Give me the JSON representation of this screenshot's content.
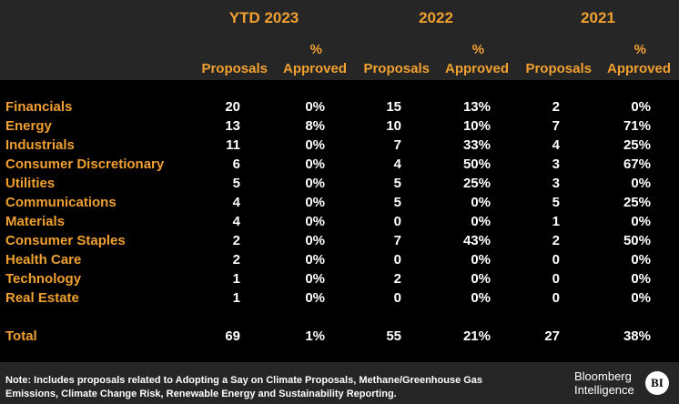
{
  "years": [
    "YTD 2023",
    "2022",
    "2021"
  ],
  "subheaders": {
    "proposals": "Proposals",
    "pct": "%",
    "approved": "Approved"
  },
  "rows": [
    {
      "sector": "Financials",
      "values": [
        "20",
        "0%",
        "15",
        "13%",
        "2",
        "0%"
      ]
    },
    {
      "sector": "Energy",
      "values": [
        "13",
        "8%",
        "10",
        "10%",
        "7",
        "71%"
      ]
    },
    {
      "sector": "Industrials",
      "values": [
        "11",
        "0%",
        "7",
        "33%",
        "4",
        "25%"
      ]
    },
    {
      "sector": "Consumer Discretionary",
      "values": [
        "6",
        "0%",
        "4",
        "50%",
        "3",
        "67%"
      ]
    },
    {
      "sector": "Utilities",
      "values": [
        "5",
        "0%",
        "5",
        "25%",
        "3",
        "0%"
      ]
    },
    {
      "sector": "Communications",
      "values": [
        "4",
        "0%",
        "5",
        "0%",
        "5",
        "25%"
      ]
    },
    {
      "sector": "Materials",
      "values": [
        "4",
        "0%",
        "0",
        "0%",
        "1",
        "0%"
      ]
    },
    {
      "sector": "Consumer Staples",
      "values": [
        "2",
        "0%",
        "7",
        "43%",
        "2",
        "50%"
      ]
    },
    {
      "sector": "Health Care",
      "values": [
        "2",
        "0%",
        "0",
        "0%",
        "0",
        "0%"
      ]
    },
    {
      "sector": "Technology",
      "values": [
        "1",
        "0%",
        "2",
        "0%",
        "0",
        "0%"
      ]
    },
    {
      "sector": "Real Estate",
      "values": [
        "1",
        "0%",
        "0",
        "0%",
        "0",
        "0%"
      ]
    }
  ],
  "total": {
    "label": "Total",
    "values": [
      "69",
      "1%",
      "55",
      "21%",
      "27",
      "38%"
    ]
  },
  "footer": {
    "note": "Note: Includes proposals related to Adopting a Say on Climate Proposals, Methane/Greenhouse Gas Emissions, Climate Change Risk, Renewable Energy and Sustainability Reporting.",
    "logo_line1": "Bloomberg",
    "logo_line2": "Intelligence",
    "logo_badge": "BI"
  },
  "colors": {
    "accent": "#f0a030",
    "background": "#000000",
    "band": "#262626",
    "text": "#ffffff"
  }
}
